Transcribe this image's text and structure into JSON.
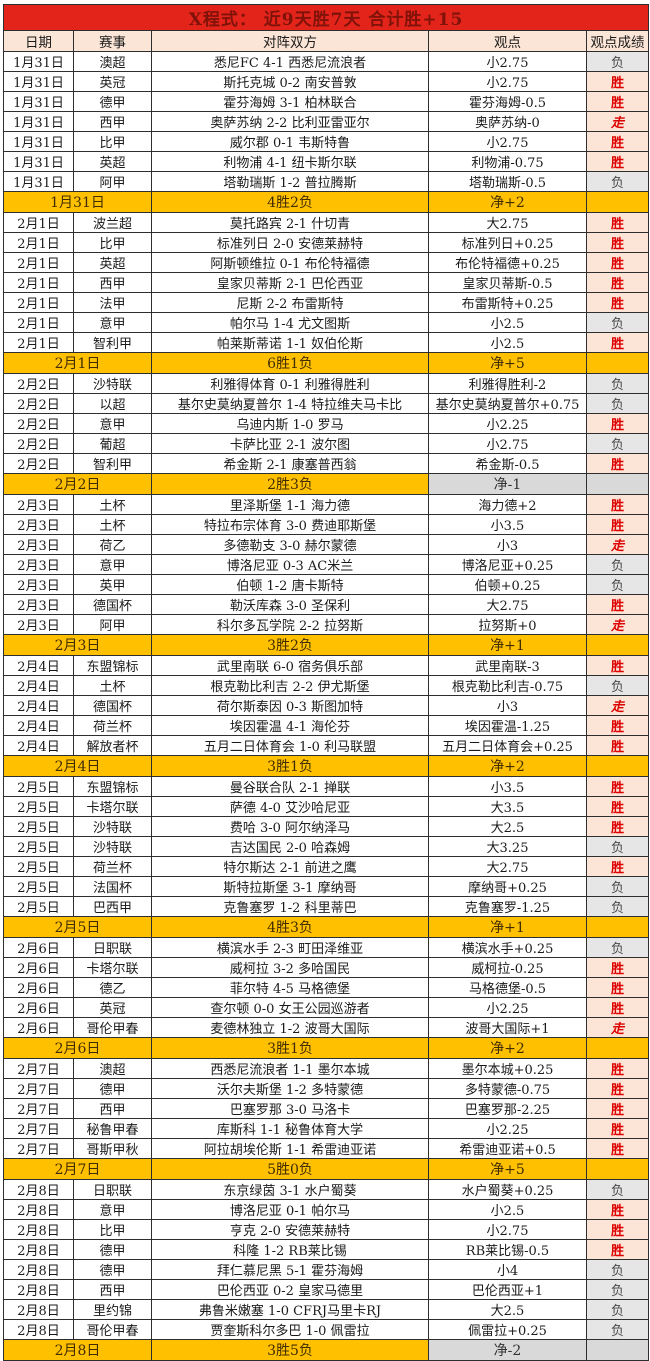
{
  "title": "X程式： 近9天胜7天 合计胜+15",
  "columns": [
    "日期",
    "赛事",
    "对阵双方",
    "观点",
    "观点成绩"
  ],
  "colors": {
    "accent_red": "#e2241b",
    "title_text": "#7f1209",
    "header_bg": "#fbe5d6",
    "border": "#2e2e2e",
    "win_bg": "#fce4d6",
    "win_text": "#dd0000",
    "loss_bg": "#e7e6e6",
    "loss_text": "#4a4a4a",
    "summary_bg": "#ffc000",
    "summary_text": "#402d00",
    "summary_neg_bg": "#d9d9d9"
  },
  "result_legend": {
    "win": "胜",
    "loss": "负",
    "push": "走"
  },
  "days": [
    {
      "date": "1月31日",
      "rows": [
        {
          "league": "澳超",
          "match": "悉尼FC 4-1 西悉尼流浪者",
          "view": "小2.75",
          "result": "负"
        },
        {
          "league": "英冠",
          "match": "斯托克城 0-2 南安普敦",
          "view": "小2.75",
          "result": "胜"
        },
        {
          "league": "德甲",
          "match": "霍芬海姆 3-1 柏林联合",
          "view": "霍芬海姆-0.5",
          "result": "胜"
        },
        {
          "league": "西甲",
          "match": "奥萨苏纳 2-2 比利亚雷亚尔",
          "view": "奥萨苏纳-0",
          "result": "走"
        },
        {
          "league": "比甲",
          "match": "威尔郡 0-1 韦斯特鲁",
          "view": "小2.75",
          "result": "胜"
        },
        {
          "league": "英超",
          "match": "利物浦 4-1 纽卡斯尔联",
          "view": "利物浦-0.75",
          "result": "胜"
        },
        {
          "league": "阿甲",
          "match": "塔勒瑞斯 1-2 普拉腾斯",
          "view": "塔勒瑞斯-0.5",
          "result": "负"
        }
      ],
      "summary": {
        "record": "4胜2负",
        "net": "净+2"
      }
    },
    {
      "date": "2月1日",
      "rows": [
        {
          "league": "波兰超",
          "match": "莫托路宾 2-1 什切青",
          "view": "大2.75",
          "result": "胜"
        },
        {
          "league": "比甲",
          "match": "标准列日 2-0 安德莱赫特",
          "view": "标准列日+0.25",
          "result": "胜"
        },
        {
          "league": "英超",
          "match": "阿斯顿维拉 0-1 布伦特福德",
          "view": "布伦特福德+0.25",
          "result": "胜"
        },
        {
          "league": "西甲",
          "match": "皇家贝蒂斯 2-1 巴伦西亚",
          "view": "皇家贝蒂斯-0.5",
          "result": "胜"
        },
        {
          "league": "法甲",
          "match": "尼斯 2-2 布雷斯特",
          "view": "布雷斯特+0.25",
          "result": "胜"
        },
        {
          "league": "意甲",
          "match": "帕尔马 1-4 尤文图斯",
          "view": "小2.5",
          "result": "负"
        },
        {
          "league": "智利甲",
          "match": "帕莱斯蒂诺 1-1 奴伯伦斯",
          "view": "小2.5",
          "result": "胜"
        }
      ],
      "summary": {
        "record": "6胜1负",
        "net": "净+5"
      }
    },
    {
      "date": "2月2日",
      "rows": [
        {
          "league": "沙特联",
          "match": "利雅得体育 0-1 利雅得胜利",
          "view": "利雅得胜利-2",
          "result": "负"
        },
        {
          "league": "以超",
          "match": "基尔史莫纳夏普尔 1-4 特拉维夫马卡比",
          "view": "基尔史莫纳夏普尔+0.75",
          "result": "负"
        },
        {
          "league": "意甲",
          "match": "乌迪内斯 1-0 罗马",
          "view": "小2.25",
          "result": "胜"
        },
        {
          "league": "葡超",
          "match": "卡萨比亚 2-1 波尔图",
          "view": "小2.75",
          "result": "负"
        },
        {
          "league": "智利甲",
          "match": "希金斯 2-1 康塞普西翁",
          "view": "希金斯-0.5",
          "result": "胜"
        }
      ],
      "summary": {
        "record": "2胜3负",
        "net": "净-1"
      }
    },
    {
      "date": "2月3日",
      "rows": [
        {
          "league": "土杯",
          "match": "里泽斯堡 1-1 海力德",
          "view": "海力德+2",
          "result": "胜"
        },
        {
          "league": "土杯",
          "match": "特拉布宗体育 3-0 费迪耶斯堡",
          "view": "小3.5",
          "result": "胜"
        },
        {
          "league": "荷乙",
          "match": "多德勒支 3-0 赫尔蒙德",
          "view": "小3",
          "result": "走"
        },
        {
          "league": "意甲",
          "match": "博洛尼亚 0-3 AC米兰",
          "view": "博洛尼亚+0.25",
          "result": "负"
        },
        {
          "league": "英甲",
          "match": "伯顿 1-2 唐卡斯特",
          "view": "伯顿+0.25",
          "result": "负"
        },
        {
          "league": "德国杯",
          "match": "勒沃库森 3-0 圣保利",
          "view": "大2.75",
          "result": "胜"
        },
        {
          "league": "阿甲",
          "match": "科尔多瓦学院 2-2 拉努斯",
          "view": "拉努斯+0",
          "result": "走"
        }
      ],
      "summary": {
        "record": "3胜2负",
        "net": "净+1"
      }
    },
    {
      "date": "2月4日",
      "rows": [
        {
          "league": "东盟锦标",
          "match": "武里南联 6-0 宿务俱乐部",
          "view": "武里南联-3",
          "result": "胜"
        },
        {
          "league": "土杯",
          "match": "根克勒比利吉 2-2 伊尤斯堡",
          "view": "根克勒比利吉-0.75",
          "result": "负"
        },
        {
          "league": "德国杯",
          "match": "荷尔斯泰因 0-3 斯图加特",
          "view": "小3",
          "result": "走"
        },
        {
          "league": "荷兰杯",
          "match": "埃因霍温 4-1 海伦芬",
          "view": "埃因霍温-1.25",
          "result": "胜"
        },
        {
          "league": "解放者杯",
          "match": "五月二日体育会 1-0 利马联盟",
          "view": "五月二日体育会+0.25",
          "result": "胜"
        }
      ],
      "summary": {
        "record": "3胜1负",
        "net": "净+2"
      }
    },
    {
      "date": "2月5日",
      "rows": [
        {
          "league": "东盟锦标",
          "match": "曼谷联合队 2-1 掸联",
          "view": "小3.5",
          "result": "胜"
        },
        {
          "league": "卡塔尔联",
          "match": "萨德 4-0 艾沙哈尼亚",
          "view": "大3.5",
          "result": "胜"
        },
        {
          "league": "沙特联",
          "match": "费哈 3-0 阿尔纳泽马",
          "view": "大2.5",
          "result": "胜"
        },
        {
          "league": "沙特联",
          "match": "吉达国民 2-0 哈森姆",
          "view": "大3.25",
          "result": "负"
        },
        {
          "league": "荷兰杯",
          "match": "特尔斯达 2-1 前进之鹰",
          "view": "大2.75",
          "result": "胜"
        },
        {
          "league": "法国杯",
          "match": "斯特拉斯堡 3-1 摩纳哥",
          "view": "摩纳哥+0.25",
          "result": "负"
        },
        {
          "league": "巴西甲",
          "match": "克鲁塞罗 1-2 科里蒂巴",
          "view": "克鲁塞罗-1.25",
          "result": "负"
        }
      ],
      "summary": {
        "record": "4胜3负",
        "net": "净+1"
      }
    },
    {
      "date": "2月6日",
      "rows": [
        {
          "league": "日职联",
          "match": "横滨水手 2-3 町田泽维亚",
          "view": "横滨水手+0.25",
          "result": "负"
        },
        {
          "league": "卡塔尔联",
          "match": "威柯拉 3-2 多哈国民",
          "view": "威柯拉-0.25",
          "result": "胜"
        },
        {
          "league": "德乙",
          "match": "菲尔特 4-5 马格德堡",
          "view": "马格德堡-0.5",
          "result": "胜"
        },
        {
          "league": "英冠",
          "match": "查尔顿 0-0 女王公园巡游者",
          "view": "小2.25",
          "result": "胜"
        },
        {
          "league": "哥伦甲春",
          "match": "麦德林独立 1-2 波哥大国际",
          "view": "波哥大国际+1",
          "result": "走"
        }
      ],
      "summary": {
        "record": "3胜1负",
        "net": "净+2"
      }
    },
    {
      "date": "2月7日",
      "rows": [
        {
          "league": "澳超",
          "match": "西悉尼流浪者 1-1 墨尔本城",
          "view": "墨尔本城+0.25",
          "result": "胜"
        },
        {
          "league": "德甲",
          "match": "沃尔夫斯堡 1-2 多特蒙德",
          "view": "多特蒙德-0.75",
          "result": "胜"
        },
        {
          "league": "西甲",
          "match": "巴塞罗那 3-0 马洛卡",
          "view": "巴塞罗那-2.25",
          "result": "胜"
        },
        {
          "league": "秘鲁甲春",
          "match": "库斯科 1-1 秘鲁体育大学",
          "view": "小2.25",
          "result": "胜"
        },
        {
          "league": "哥斯甲秋",
          "match": "阿拉胡埃伦斯 1-1 希雷迪亚诺",
          "view": "希雷迪亚诺+0.5",
          "result": "胜"
        }
      ],
      "summary": {
        "record": "5胜0负",
        "net": "净+5"
      }
    },
    {
      "date": "2月8日",
      "rows": [
        {
          "league": "日职联",
          "match": "东京绿茵 3-1 水户蜀葵",
          "view": "水户蜀葵+0.25",
          "result": "负"
        },
        {
          "league": "意甲",
          "match": "博洛尼亚 0-1 帕尔马",
          "view": "小2.5",
          "result": "胜"
        },
        {
          "league": "比甲",
          "match": "亨克 2-0 安德莱赫特",
          "view": "小2.75",
          "result": "胜"
        },
        {
          "league": "德甲",
          "match": "科隆 1-2 RB莱比锡",
          "view": "RB莱比锡-0.5",
          "result": "胜"
        },
        {
          "league": "德甲",
          "match": "拜仁慕尼黑 5-1 霍芬海姆",
          "view": "小4",
          "result": "负"
        },
        {
          "league": "西甲",
          "match": "巴伦西亚 0-2 皇家马德里",
          "view": "巴伦西亚+1",
          "result": "负"
        },
        {
          "league": "里约锦",
          "match": "弗鲁米嫩塞 1-0 CFRJ马里卡RJ",
          "view": "大2.5",
          "result": "负"
        },
        {
          "league": "哥伦甲春",
          "match": "贾奎斯科尔多巴 1-0 佩雷拉",
          "view": "佩雷拉+0.25",
          "result": "负"
        }
      ],
      "summary": {
        "record": "3胜5负",
        "net": "净-2"
      }
    }
  ]
}
